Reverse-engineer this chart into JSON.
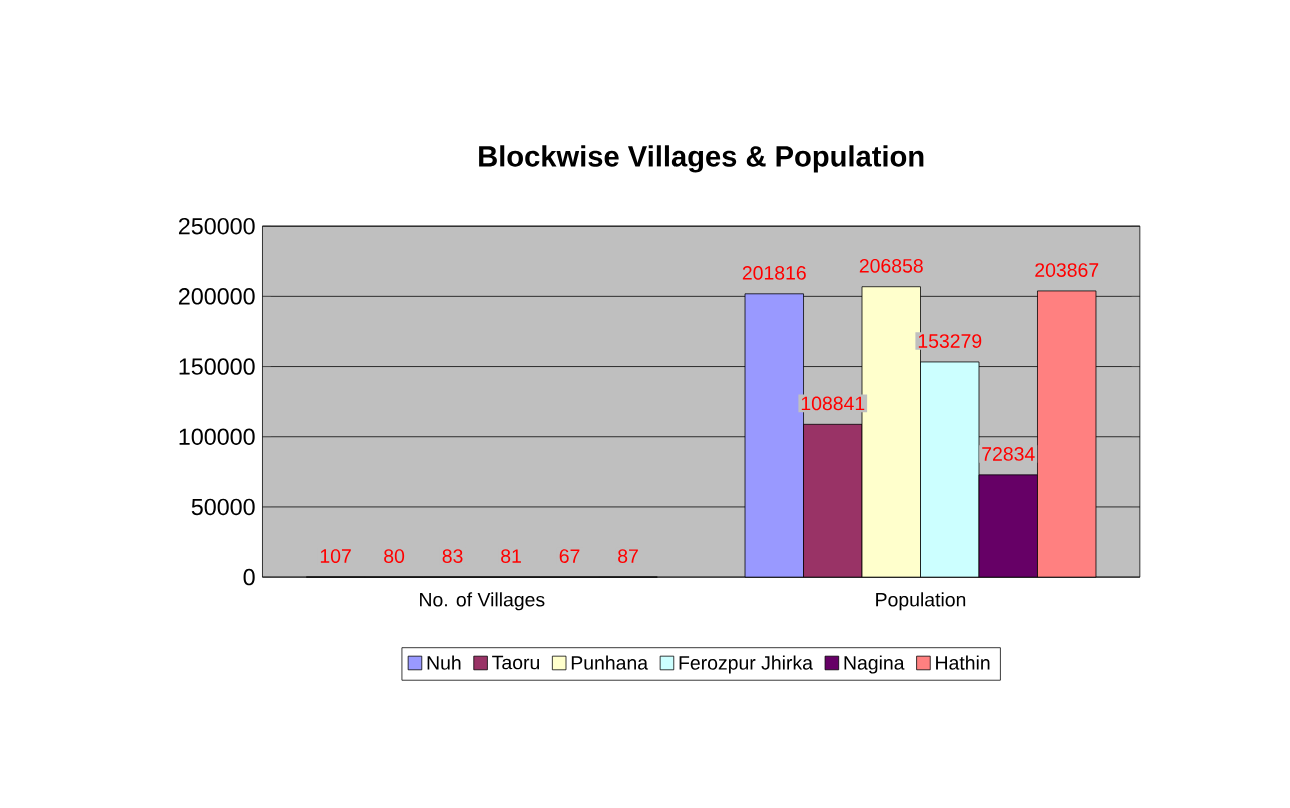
{
  "chart_data": {
    "type": "bar",
    "title": "Blockwise Villages & Population",
    "categories": [
      "No. of Villages",
      "Population"
    ],
    "series": [
      {
        "name": "Nuh",
        "color": "#9999ff",
        "values": [
          107,
          201816
        ]
      },
      {
        "name": "Taoru",
        "color": "#993366",
        "values": [
          80,
          108841
        ]
      },
      {
        "name": "Punhana",
        "color": "#ffffcc",
        "values": [
          83,
          206858
        ]
      },
      {
        "name": "Ferozpur Jhirka",
        "color": "#ccffff",
        "values": [
          81,
          153279
        ]
      },
      {
        "name": "Nagina",
        "color": "#660066",
        "values": [
          67,
          72834
        ]
      },
      {
        "name": "Hathin",
        "color": "#ff8080",
        "values": [
          87,
          203867
        ]
      }
    ],
    "ylim": [
      0,
      250000
    ],
    "yticks": [
      0,
      50000,
      100000,
      150000,
      200000,
      250000
    ],
    "grid": "y",
    "legend": "bottom",
    "data_labels": true
  }
}
